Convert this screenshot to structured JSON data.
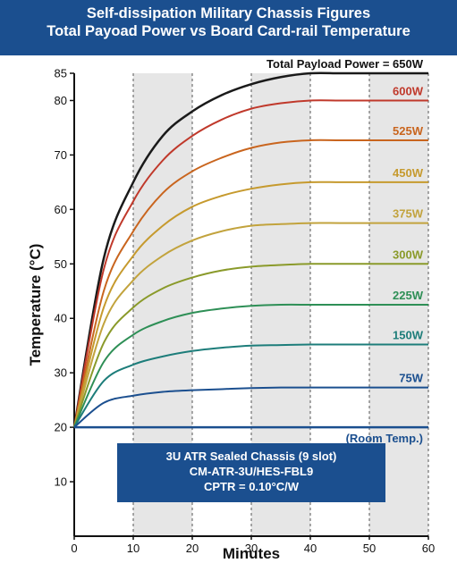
{
  "header": {
    "line1": "Self-dissipation Military Chassis Figures",
    "line2": "Total Payoad Power vs Board Card-rail Temperature"
  },
  "chart_data": {
    "type": "line",
    "title": "Self-dissipation Military Chassis Figures — Total Payoad Power vs Board Card-rail Temperature",
    "xlabel": "Minutes",
    "ylabel": "Temperature (°C)",
    "xlim": [
      0,
      60
    ],
    "ylim": [
      0,
      85
    ],
    "x_ticks": [
      0,
      10,
      20,
      30,
      40,
      50,
      60
    ],
    "y_ticks": [
      10,
      20,
      30,
      40,
      50,
      60,
      70,
      80,
      85
    ],
    "shaded_bands": [
      [
        10,
        20
      ],
      [
        30,
        40
      ],
      [
        50,
        60
      ]
    ],
    "x": [
      0,
      5,
      10,
      15,
      20,
      25,
      30,
      35,
      40,
      45,
      50,
      55,
      60
    ],
    "series": [
      {
        "name": "Total Payload Power = 650W",
        "color": "#1a1a1a",
        "values": [
          20,
          51,
          65,
          73.5,
          78,
          81,
          83,
          84.3,
          85,
          85,
          85,
          85,
          85
        ]
      },
      {
        "name": "600W",
        "color": "#c0392b",
        "values": [
          20,
          49,
          61.5,
          69,
          73.5,
          76.5,
          78.5,
          79.5,
          80,
          80,
          80,
          80,
          80
        ]
      },
      {
        "name": "525W",
        "color": "#c9651e",
        "values": [
          20,
          45,
          56,
          63,
          67,
          69.5,
          71.3,
          72.3,
          72.7,
          72.7,
          72.7,
          72.7,
          72.7
        ]
      },
      {
        "name": "450W",
        "color": "#c69a2e",
        "values": [
          20,
          42,
          51.5,
          57,
          60.5,
          62.5,
          63.8,
          64.6,
          65,
          65,
          65,
          65,
          65
        ]
      },
      {
        "name": "375W",
        "color": "#c2a33d",
        "values": [
          20,
          39,
          47,
          51.5,
          54.3,
          56,
          57,
          57.3,
          57.5,
          57.5,
          57.5,
          57.5,
          57.5
        ]
      },
      {
        "name": "300W",
        "color": "#8a9a2a",
        "values": [
          20,
          35.5,
          42,
          45.5,
          47.5,
          48.8,
          49.5,
          49.8,
          50,
          50,
          50,
          50,
          50
        ]
      },
      {
        "name": "225W",
        "color": "#2e8f56",
        "values": [
          20,
          32,
          37,
          39.5,
          41,
          41.8,
          42.3,
          42.5,
          42.5,
          42.5,
          42.5,
          42.5,
          42.5
        ]
      },
      {
        "name": "150W",
        "color": "#1d7d7a",
        "values": [
          20,
          28.5,
          31.5,
          33,
          34,
          34.6,
          35,
          35.1,
          35.2,
          35.2,
          35.2,
          35.2,
          35.2
        ]
      },
      {
        "name": "75W",
        "color": "#1b4f8f",
        "values": [
          20,
          24.5,
          25.8,
          26.5,
          26.8,
          27,
          27.2,
          27.3,
          27.3,
          27.3,
          27.3,
          27.3,
          27.3
        ]
      },
      {
        "name": "(Room Temp.)",
        "color": "#1b4f8f",
        "values": [
          20,
          20,
          20,
          20,
          20,
          20,
          20,
          20,
          20,
          20,
          20,
          20,
          20
        ]
      }
    ],
    "annotations": [
      "3U ATR Sealed Chassis (9 slot)",
      "CM-ATR-3U/HES-FBL9",
      "CPTR = 0.10°C/W"
    ]
  },
  "infobox": {
    "line1": "3U ATR Sealed Chassis (9 slot)",
    "line2": "CM-ATR-3U/HES-FBL9",
    "line3": "CPTR = 0.10°C/W"
  }
}
